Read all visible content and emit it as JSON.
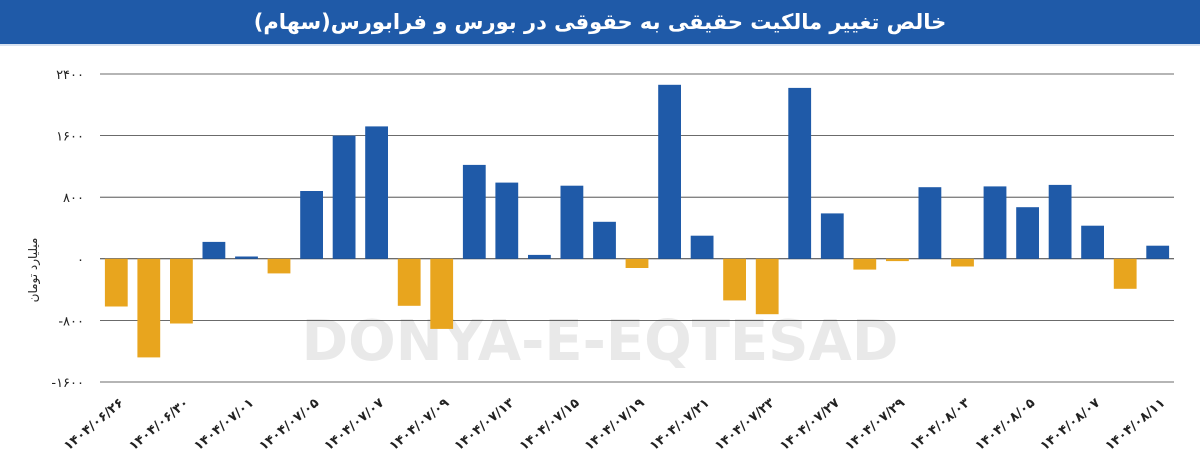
{
  "title": "خالص تغییر مالکیت حقیقی به حقوقی در بورس و فرابورس(سهام)",
  "watermark": "DONYA-E-EQTESAD",
  "colors": {
    "positive": "#1f5aa8",
    "negative": "#e8a51e",
    "grid": "#3a3a3a",
    "title_bg": "#1f5aa8"
  },
  "chart_data": {
    "type": "bar",
    "title": "خالص تغییر مالکیت حقیقی به حقوقی در بورس و فرابورس(سهام)",
    "ylabel": "میلیارد تومان",
    "xlabel": "",
    "ylim": [
      -1600,
      2400
    ],
    "yticks": [
      -1600,
      -800,
      0,
      800,
      1600,
      2400
    ],
    "ytick_labels": [
      "-۱۶۰۰",
      "-۸۰۰",
      "۰",
      "۸۰۰",
      "۱۶۰۰",
      "۲۴۰۰"
    ],
    "grid": true,
    "categories": [
      "۱۴۰۴/۰۶/۲۶",
      "",
      "۱۴۰۴/۰۶/۳۰",
      "",
      "۱۴۰۴/۰۷/۰۱",
      "",
      "۱۴۰۴/۰۷/۰۵",
      "",
      "۱۴۰۴/۰۷/۰۷",
      "",
      "۱۴۰۴/۰۷/۰۹",
      "",
      "۱۴۰۴/۰۷/۱۳",
      "",
      "۱۴۰۴/۰۷/۱۵",
      "",
      "۱۴۰۴/۰۷/۱۹",
      "",
      "۱۴۰۴/۰۷/۲۱",
      "",
      "۱۴۰۴/۰۷/۲۳",
      "",
      "۱۴۰۴/۰۷/۲۷",
      "",
      "۱۴۰۴/۰۷/۲۹",
      "",
      "۱۴۰۴/۰۸/۰۳",
      "",
      "۱۴۰۴/۰۸/۰۵",
      "",
      "۱۴۰۴/۰۸/۰۷",
      "",
      "۱۴۰۴/۰۸/۱۱"
    ],
    "values": [
      -620,
      -1280,
      -840,
      220,
      30,
      -190,
      880,
      1600,
      1720,
      -610,
      -910,
      1220,
      990,
      50,
      950,
      480,
      -120,
      2260,
      300,
      -540,
      -720,
      2220,
      590,
      -140,
      -30,
      930,
      -100,
      940,
      670,
      960,
      430,
      -390,
      170
    ]
  }
}
